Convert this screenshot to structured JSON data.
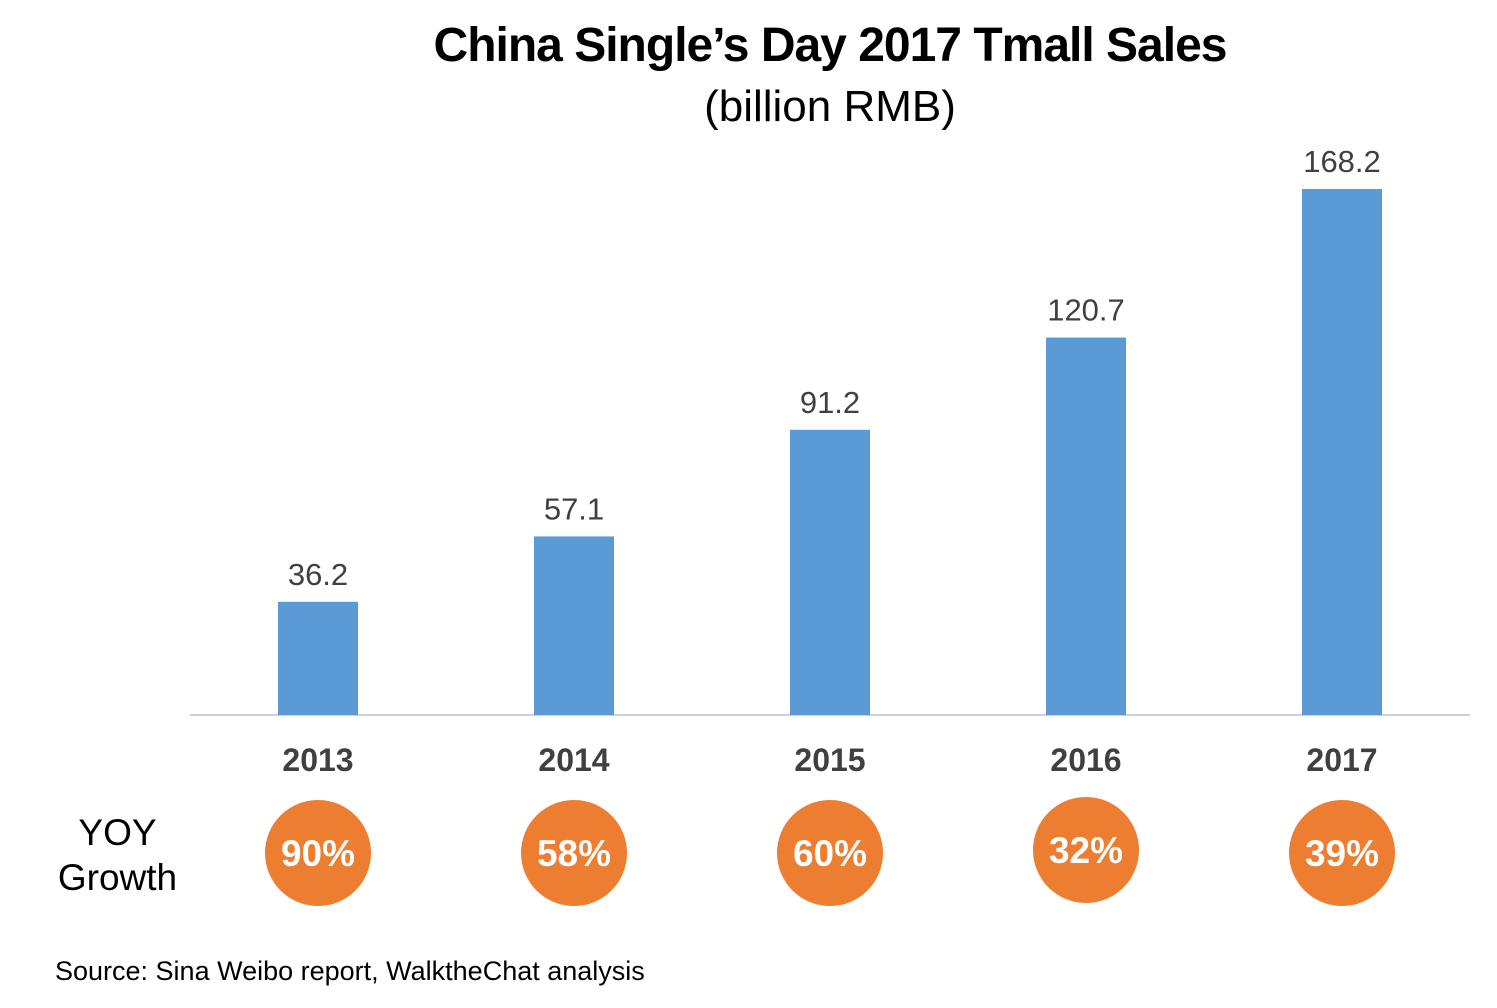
{
  "chart_data": {
    "type": "bar",
    "title": "China Single’s Day 2017 Tmall Sales",
    "subtitle": "(billion RMB)",
    "categories": [
      "2013",
      "2014",
      "2015",
      "2016",
      "2017"
    ],
    "values": [
      36.2,
      57.1,
      91.2,
      120.7,
      168.2
    ],
    "value_labels": [
      "36.2",
      "57.1",
      "91.2",
      "120.7",
      "168.2"
    ],
    "growth_label_lines": [
      "YOY",
      "Growth"
    ],
    "growth": [
      "90%",
      "58%",
      "60%",
      "32%",
      "39%"
    ],
    "ylim": [
      0,
      168.2
    ],
    "grid": false,
    "colors": {
      "bar": "#5b9bd5",
      "growth": "#ed7d31",
      "axis": "#d0d0d0",
      "text": "#404040"
    }
  },
  "source": "Source: Sina Weibo report, WalktheChat analysis"
}
